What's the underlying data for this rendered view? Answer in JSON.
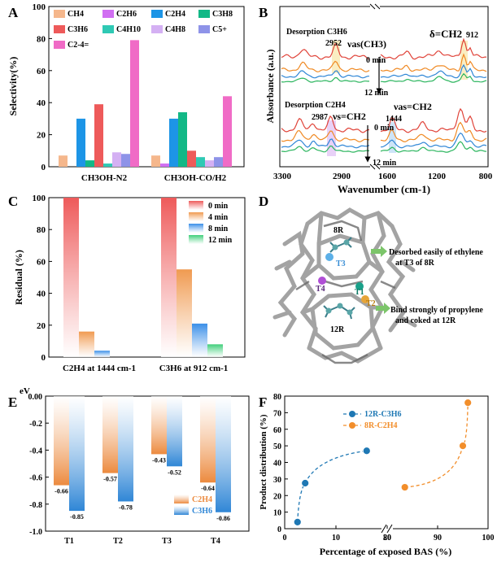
{
  "panel_letters": [
    "A",
    "B",
    "C",
    "D",
    "E",
    "F"
  ],
  "colors": {
    "CH4": "#f5b78c",
    "C2H6": "#d16ff2",
    "C2H4": "#1d95e6",
    "C3H8": "#12b886",
    "C3H6": "#ee5a5a",
    "C4H10": "#2fc9b4",
    "C4H8": "#d4b0f3",
    "C5p": "#8e93e8",
    "C2_4eq": "#f06bc6",
    "spec_red": "#e0443a",
    "spec_orange": "#f08a24",
    "spec_blue": "#2f86d6",
    "spec_green": "#2bb55e",
    "c_red": "#ee5a5a",
    "c_orange": "#f09a50",
    "c_blue": "#3a8fe8",
    "c_green": "#3fcf7a",
    "e_orange": "#ec8a3e",
    "e_blue": "#2f86d6",
    "f_blue": "#1f78b4",
    "f_orange": "#f28e2b"
  },
  "chart_data": [
    {
      "panel": "A",
      "type": "bar",
      "ylabel": "Selectivity(%)",
      "ylim": [
        0,
        100
      ],
      "yticks": [
        0,
        20,
        40,
        60,
        80,
        100
      ],
      "categories": [
        "CH3OH-N2",
        "CH3OH-CO/H2"
      ],
      "series": [
        {
          "key": "CH4",
          "name": "CH4",
          "values": [
            7,
            7
          ]
        },
        {
          "key": "C2H6",
          "name": "C2H6",
          "values": [
            0,
            2
          ]
        },
        {
          "key": "C2H4",
          "name": "C2H4",
          "values": [
            30,
            30
          ]
        },
        {
          "key": "C3H8",
          "name": "C3H8",
          "values": [
            4,
            34
          ]
        },
        {
          "key": "C3H6",
          "name": "C3H6",
          "values": [
            39,
            10
          ]
        },
        {
          "key": "C4H10",
          "name": "C4H10",
          "values": [
            2,
            6
          ]
        },
        {
          "key": "C4H8",
          "name": "C4H8",
          "values": [
            9,
            4
          ]
        },
        {
          "key": "C5p",
          "name": "C5+",
          "values": [
            8,
            6
          ]
        },
        {
          "key": "C2_4eq",
          "name": "C2-4=",
          "values": [
            79,
            44
          ]
        }
      ]
    },
    {
      "panel": "B",
      "type": "line",
      "xlabel": "Wavenumber (cm-1)",
      "ylabel": "Absorbance (a.u.)",
      "x_segments": [
        [
          3300,
          2700
        ],
        [
          1800,
          800
        ]
      ],
      "xticks": [
        "3300",
        "2900",
        "1600",
        "1200",
        "800"
      ],
      "legend_top_0": "0 min",
      "legend_top_12": "12 min",
      "legend_bot_0": "0 min",
      "legend_bot_12": "12 min",
      "annotations": {
        "desorb_c3h6": "Desorption C3H6",
        "peak_2952": "2952",
        "nu_as_ch3": "νas(CH3)",
        "delta_ch2": "δ=CH2",
        "peak_912": "912",
        "desorb_c2h4": "Desorption C2H4",
        "peak_2987": "2987",
        "nu_s_ch2": "νs=CH2",
        "nu_as_ch2": "νas=CH2",
        "peak_1444": "1444"
      }
    },
    {
      "panel": "C",
      "type": "bar",
      "ylabel": "Residual (%)",
      "ylim": [
        0,
        100
      ],
      "yticks": [
        0,
        20,
        40,
        60,
        80,
        100
      ],
      "categories": [
        "C2H4 at 1444 cm-1",
        "C3H6 at 912 cm-1"
      ],
      "series": [
        {
          "name": "0 min",
          "values": [
            100,
            100
          ]
        },
        {
          "name": "4 min",
          "values": [
            16,
            55
          ]
        },
        {
          "name": "8 min",
          "values": [
            4,
            21
          ]
        },
        {
          "name": "12 min",
          "values": [
            0,
            8
          ]
        }
      ]
    },
    {
      "panel": "E",
      "type": "bar",
      "ylabel": "eV",
      "ylim": [
        -1.0,
        0
      ],
      "yticks": [
        "0.00",
        "-0.2",
        "-0.4",
        "-0.6",
        "-0.8",
        "-1.0"
      ],
      "categories": [
        "T1",
        "T2",
        "T3",
        "T4"
      ],
      "series": [
        {
          "name": "C2H4",
          "values": [
            -0.66,
            -0.57,
            -0.43,
            -0.64
          ]
        },
        {
          "name": "C3H6",
          "values": [
            -0.85,
            -0.78,
            -0.52,
            -0.86
          ]
        }
      ]
    },
    {
      "panel": "F",
      "type": "scatter",
      "xlabel": "Percentage of exposed BAS (%)",
      "ylabel": "Product distribution (%)",
      "ylim": [
        0,
        80
      ],
      "yticks": [
        0,
        10,
        20,
        30,
        40,
        50,
        60,
        70,
        80
      ],
      "x_break": [
        20,
        80
      ],
      "xticks": [
        "0",
        "10",
        "20",
        "80",
        "90",
        "100"
      ],
      "series": [
        {
          "name": "12R-C3H6",
          "points": [
            [
              2.5,
              4
            ],
            [
              4,
              27.5
            ],
            [
              16,
              47
            ]
          ]
        },
        {
          "name": "8R-C2H4",
          "points": [
            [
              83.5,
              25
            ],
            [
              95,
              50
            ],
            [
              96,
              76
            ]
          ]
        }
      ]
    }
  ],
  "panel_d": {
    "ring_8r": "8R",
    "ring_12r": "12R",
    "site_t3": "T3",
    "site_t4": "T4",
    "site_t1": "T1",
    "site_t2": "T2",
    "note_top": [
      "Desorbed easily of ethylene",
      "at T3 of 8R"
    ],
    "note_bottom": [
      "Bind strongly of propylene",
      "and coked at 12R"
    ]
  }
}
